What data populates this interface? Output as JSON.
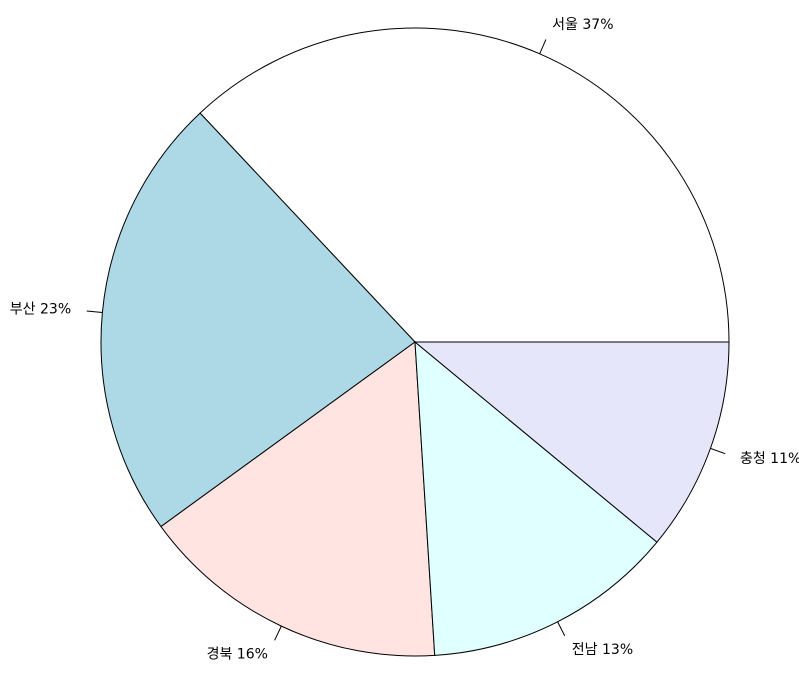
{
  "chart_data": {
    "type": "pie",
    "values": [
      37,
      23,
      16,
      13,
      11
    ],
    "value_labels": [
      "서울 37%",
      "부산 23%",
      "경북 16%",
      "전남 13%",
      "충청 11%"
    ],
    "colors": [
      "#ffffff",
      "#add8e6",
      "#ffe4e1",
      "#e0ffff",
      "#e6e6fa"
    ],
    "start_angle": 0,
    "direction": "counterclockwise"
  }
}
